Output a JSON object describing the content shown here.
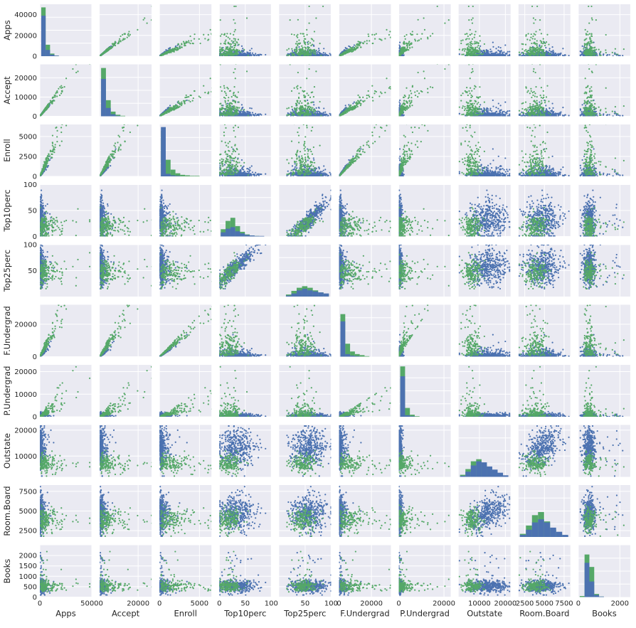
{
  "chart_data": {
    "type": "scatter_matrix",
    "variables": [
      "Apps",
      "Accept",
      "Enroll",
      "Top10perc",
      "Top25perc",
      "F.Undergrad",
      "P.Undergrad",
      "Outstate",
      "Room.Board",
      "Books"
    ],
    "groups": [
      {
        "color": "#4c72b0"
      },
      {
        "color": "#55a868"
      }
    ],
    "style": {
      "background": "#eaeaf2",
      "grid": "#ffffff",
      "grid_on": true
    },
    "axes": {
      "Apps": {
        "range": [
          0,
          50000
        ],
        "y_ticks": [
          {
            "v": 0,
            "label": "0"
          },
          {
            "v": 20000,
            "label": "20000"
          },
          {
            "v": 40000,
            "label": "40000"
          }
        ],
        "x_ticks": [
          {
            "v": 0,
            "label": "0"
          },
          {
            "v": 50000,
            "label": "50000"
          }
        ]
      },
      "Accept": {
        "range": [
          0,
          27000
        ],
        "y_ticks": [
          {
            "v": 0,
            "label": "0"
          },
          {
            "v": 10000,
            "label": "10000"
          },
          {
            "v": 20000,
            "label": "20000"
          }
        ],
        "x_ticks": [
          {
            "v": 20000,
            "label": "20000"
          }
        ]
      },
      "Enroll": {
        "range": [
          0,
          6500
        ],
        "y_ticks": [
          {
            "v": 0,
            "label": "0"
          },
          {
            "v": 2500,
            "label": "2500"
          },
          {
            "v": 5000,
            "label": "5000"
          }
        ],
        "x_ticks": [
          {
            "v": 0,
            "label": "0"
          },
          {
            "v": 5000,
            "label": "5000"
          }
        ]
      },
      "Top10perc": {
        "range": [
          0,
          100
        ],
        "y_ticks": [
          {
            "v": 0,
            "label": "0"
          },
          {
            "v": 50,
            "label": "50"
          },
          {
            "v": 100,
            "label": "100"
          }
        ],
        "x_ticks": [
          {
            "v": 0,
            "label": "0"
          },
          {
            "v": 50,
            "label": "50"
          },
          {
            "v": 100,
            "label": "100"
          }
        ]
      },
      "Top25perc": {
        "range": [
          0,
          100
        ],
        "y_ticks": [
          {
            "v": 50,
            "label": "50"
          },
          {
            "v": 100,
            "label": "100"
          }
        ],
        "x_ticks": [
          {
            "v": 50,
            "label": "50"
          },
          {
            "v": 100,
            "label": "100"
          }
        ]
      },
      "F.Undergrad": {
        "range": [
          0,
          32000
        ],
        "y_ticks": [
          {
            "v": 0,
            "label": "0"
          },
          {
            "v": 20000,
            "label": "20000"
          }
        ],
        "x_ticks": [
          {
            "v": 0,
            "label": "0"
          },
          {
            "v": 20000,
            "label": "20000"
          }
        ]
      },
      "P.Undergrad": {
        "range": [
          0,
          23000
        ],
        "y_ticks": [
          {
            "v": 0,
            "label": "0"
          },
          {
            "v": 10000,
            "label": "10000"
          },
          {
            "v": 20000,
            "label": "20000"
          }
        ],
        "x_ticks": [
          {
            "v": 0,
            "label": "0"
          },
          {
            "v": 20000,
            "label": "20000"
          }
        ]
      },
      "Outstate": {
        "range": [
          2000,
          22000
        ],
        "y_ticks": [
          {
            "v": 10000,
            "label": "10000"
          },
          {
            "v": 20000,
            "label": "20000"
          }
        ],
        "x_ticks": [
          {
            "v": 10000,
            "label": "10000"
          },
          {
            "v": 20000,
            "label": "20000"
          }
        ]
      },
      "Room.Board": {
        "range": [
          1700,
          8300
        ],
        "y_ticks": [
          {
            "v": 2500,
            "label": "2500"
          },
          {
            "v": 5000,
            "label": "5000"
          },
          {
            "v": 7500,
            "label": "7500"
          }
        ],
        "x_ticks": [
          {
            "v": 2500,
            "label": "2500"
          },
          {
            "v": 5000,
            "label": "5000"
          },
          {
            "v": 7500,
            "label": "7500"
          }
        ]
      },
      "Books": {
        "range": [
          0,
          2500
        ],
        "y_ticks": [
          {
            "v": 0,
            "label": "0"
          },
          {
            "v": 500,
            "label": "500"
          },
          {
            "v": 1000,
            "label": "1000"
          },
          {
            "v": 1500,
            "label": "1500"
          },
          {
            "v": 2000,
            "label": "2000"
          }
        ],
        "x_ticks": [
          {
            "v": 0,
            "label": "0"
          },
          {
            "v": 2000,
            "label": "2000"
          }
        ]
      }
    },
    "histograms": {
      "Apps": {
        "blue": [
          0.78,
          0.12,
          0.03,
          0.01,
          0,
          0,
          0,
          0,
          0,
          0,
          0
        ],
        "green": [
          0.94,
          0.22,
          0.05,
          0.01,
          0,
          0,
          0,
          0,
          0,
          0,
          0
        ]
      },
      "Accept": {
        "blue": [
          0.72,
          0.16,
          0.04,
          0.01,
          0,
          0,
          0,
          0,
          0,
          0
        ],
        "green": [
          0.93,
          0.31,
          0.09,
          0.03,
          0.01,
          0,
          0,
          0,
          0,
          0
        ]
      },
      "Enroll": {
        "blue": [
          0.95,
          0.05,
          0.02,
          0.01,
          0,
          0,
          0,
          0,
          0,
          0
        ],
        "green": [
          0.88,
          0.32,
          0.13,
          0.06,
          0.03,
          0.02,
          0.01,
          0.01,
          0,
          0
        ]
      },
      "Top10perc": {
        "blue": [
          0.08,
          0.15,
          0.18,
          0.1,
          0.06,
          0.03,
          0.02,
          0.01,
          0.01,
          0
        ],
        "green": [
          0.14,
          0.3,
          0.36,
          0.2,
          0.09,
          0.04,
          0.02,
          0.01,
          0,
          0
        ]
      },
      "Top25perc": {
        "blue": [
          0,
          0.02,
          0.06,
          0.12,
          0.15,
          0.12,
          0.1,
          0.08,
          0.06
        ],
        "green": [
          0,
          0.04,
          0.11,
          0.17,
          0.2,
          0.17,
          0.12,
          0.08,
          0.05
        ]
      },
      "F.Undergrad": {
        "blue": [
          0.68,
          0.05,
          0.02,
          0.01,
          0,
          0,
          0,
          0,
          0,
          0
        ],
        "green": [
          0.82,
          0.25,
          0.1,
          0.05,
          0.03,
          0.01,
          0,
          0,
          0,
          0
        ]
      },
      "P.Undergrad": {
        "blue": [
          0.78,
          0.03,
          0.01,
          0,
          0,
          0,
          0,
          0,
          0,
          0
        ],
        "green": [
          0.97,
          0.17,
          0.04,
          0.01,
          0,
          0,
          0,
          0,
          0,
          0
        ]
      },
      "Outstate": {
        "blue": [
          0.02,
          0.1,
          0.22,
          0.3,
          0.28,
          0.2,
          0.14,
          0.08,
          0.03
        ],
        "green": [
          0.04,
          0.15,
          0.3,
          0.34,
          0.22,
          0.1,
          0.05,
          0.02,
          0
        ]
      },
      "Room.Board": {
        "blue": [
          0.04,
          0.14,
          0.28,
          0.34,
          0.28,
          0.18,
          0.1,
          0.04
        ],
        "green": [
          0.06,
          0.22,
          0.42,
          0.48,
          0.3,
          0.14,
          0.06,
          0.02
        ]
      },
      "Books": {
        "blue": [
          0,
          0.66,
          0.3,
          0.04,
          0.01,
          0,
          0,
          0,
          0,
          0
        ],
        "green": [
          0.02,
          0.82,
          0.58,
          0.06,
          0.01,
          0,
          0,
          0,
          0,
          0
        ]
      }
    }
  }
}
